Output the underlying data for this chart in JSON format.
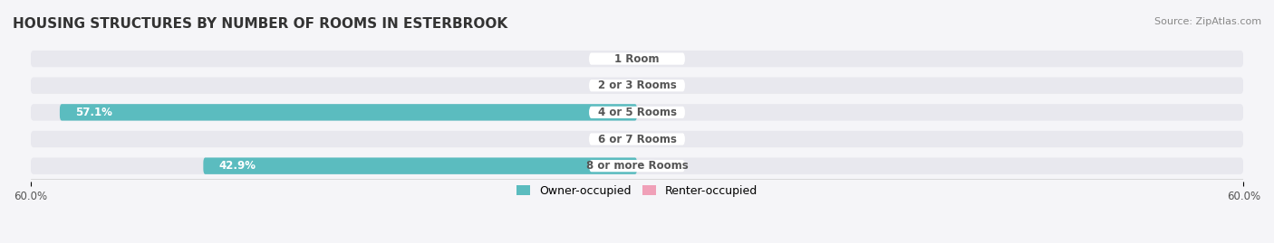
{
  "title": "HOUSING STRUCTURES BY NUMBER OF ROOMS IN ESTERBROOK",
  "source": "Source: ZipAtlas.com",
  "categories": [
    "1 Room",
    "2 or 3 Rooms",
    "4 or 5 Rooms",
    "6 or 7 Rooms",
    "8 or more Rooms"
  ],
  "owner_values": [
    0.0,
    0.0,
    57.1,
    0.0,
    42.9
  ],
  "renter_values": [
    0.0,
    0.0,
    0.0,
    0.0,
    0.0
  ],
  "xlim": [
    -60,
    60
  ],
  "owner_color": "#5bbcbf",
  "renter_color": "#f0a0b8",
  "bar_bg_color": "#e8e8ee",
  "bar_height": 0.62,
  "background_color": "#f5f5f8",
  "text_color_dark": "#555555",
  "text_color_white": "#ffffff",
  "label_fontsize": 8.5,
  "title_fontsize": 11,
  "source_fontsize": 8,
  "axis_tick_fontsize": 8.5,
  "legend_fontsize": 9,
  "x_ticks": [
    -60,
    60
  ],
  "x_tick_labels": [
    "60.0%",
    "60.0%"
  ]
}
